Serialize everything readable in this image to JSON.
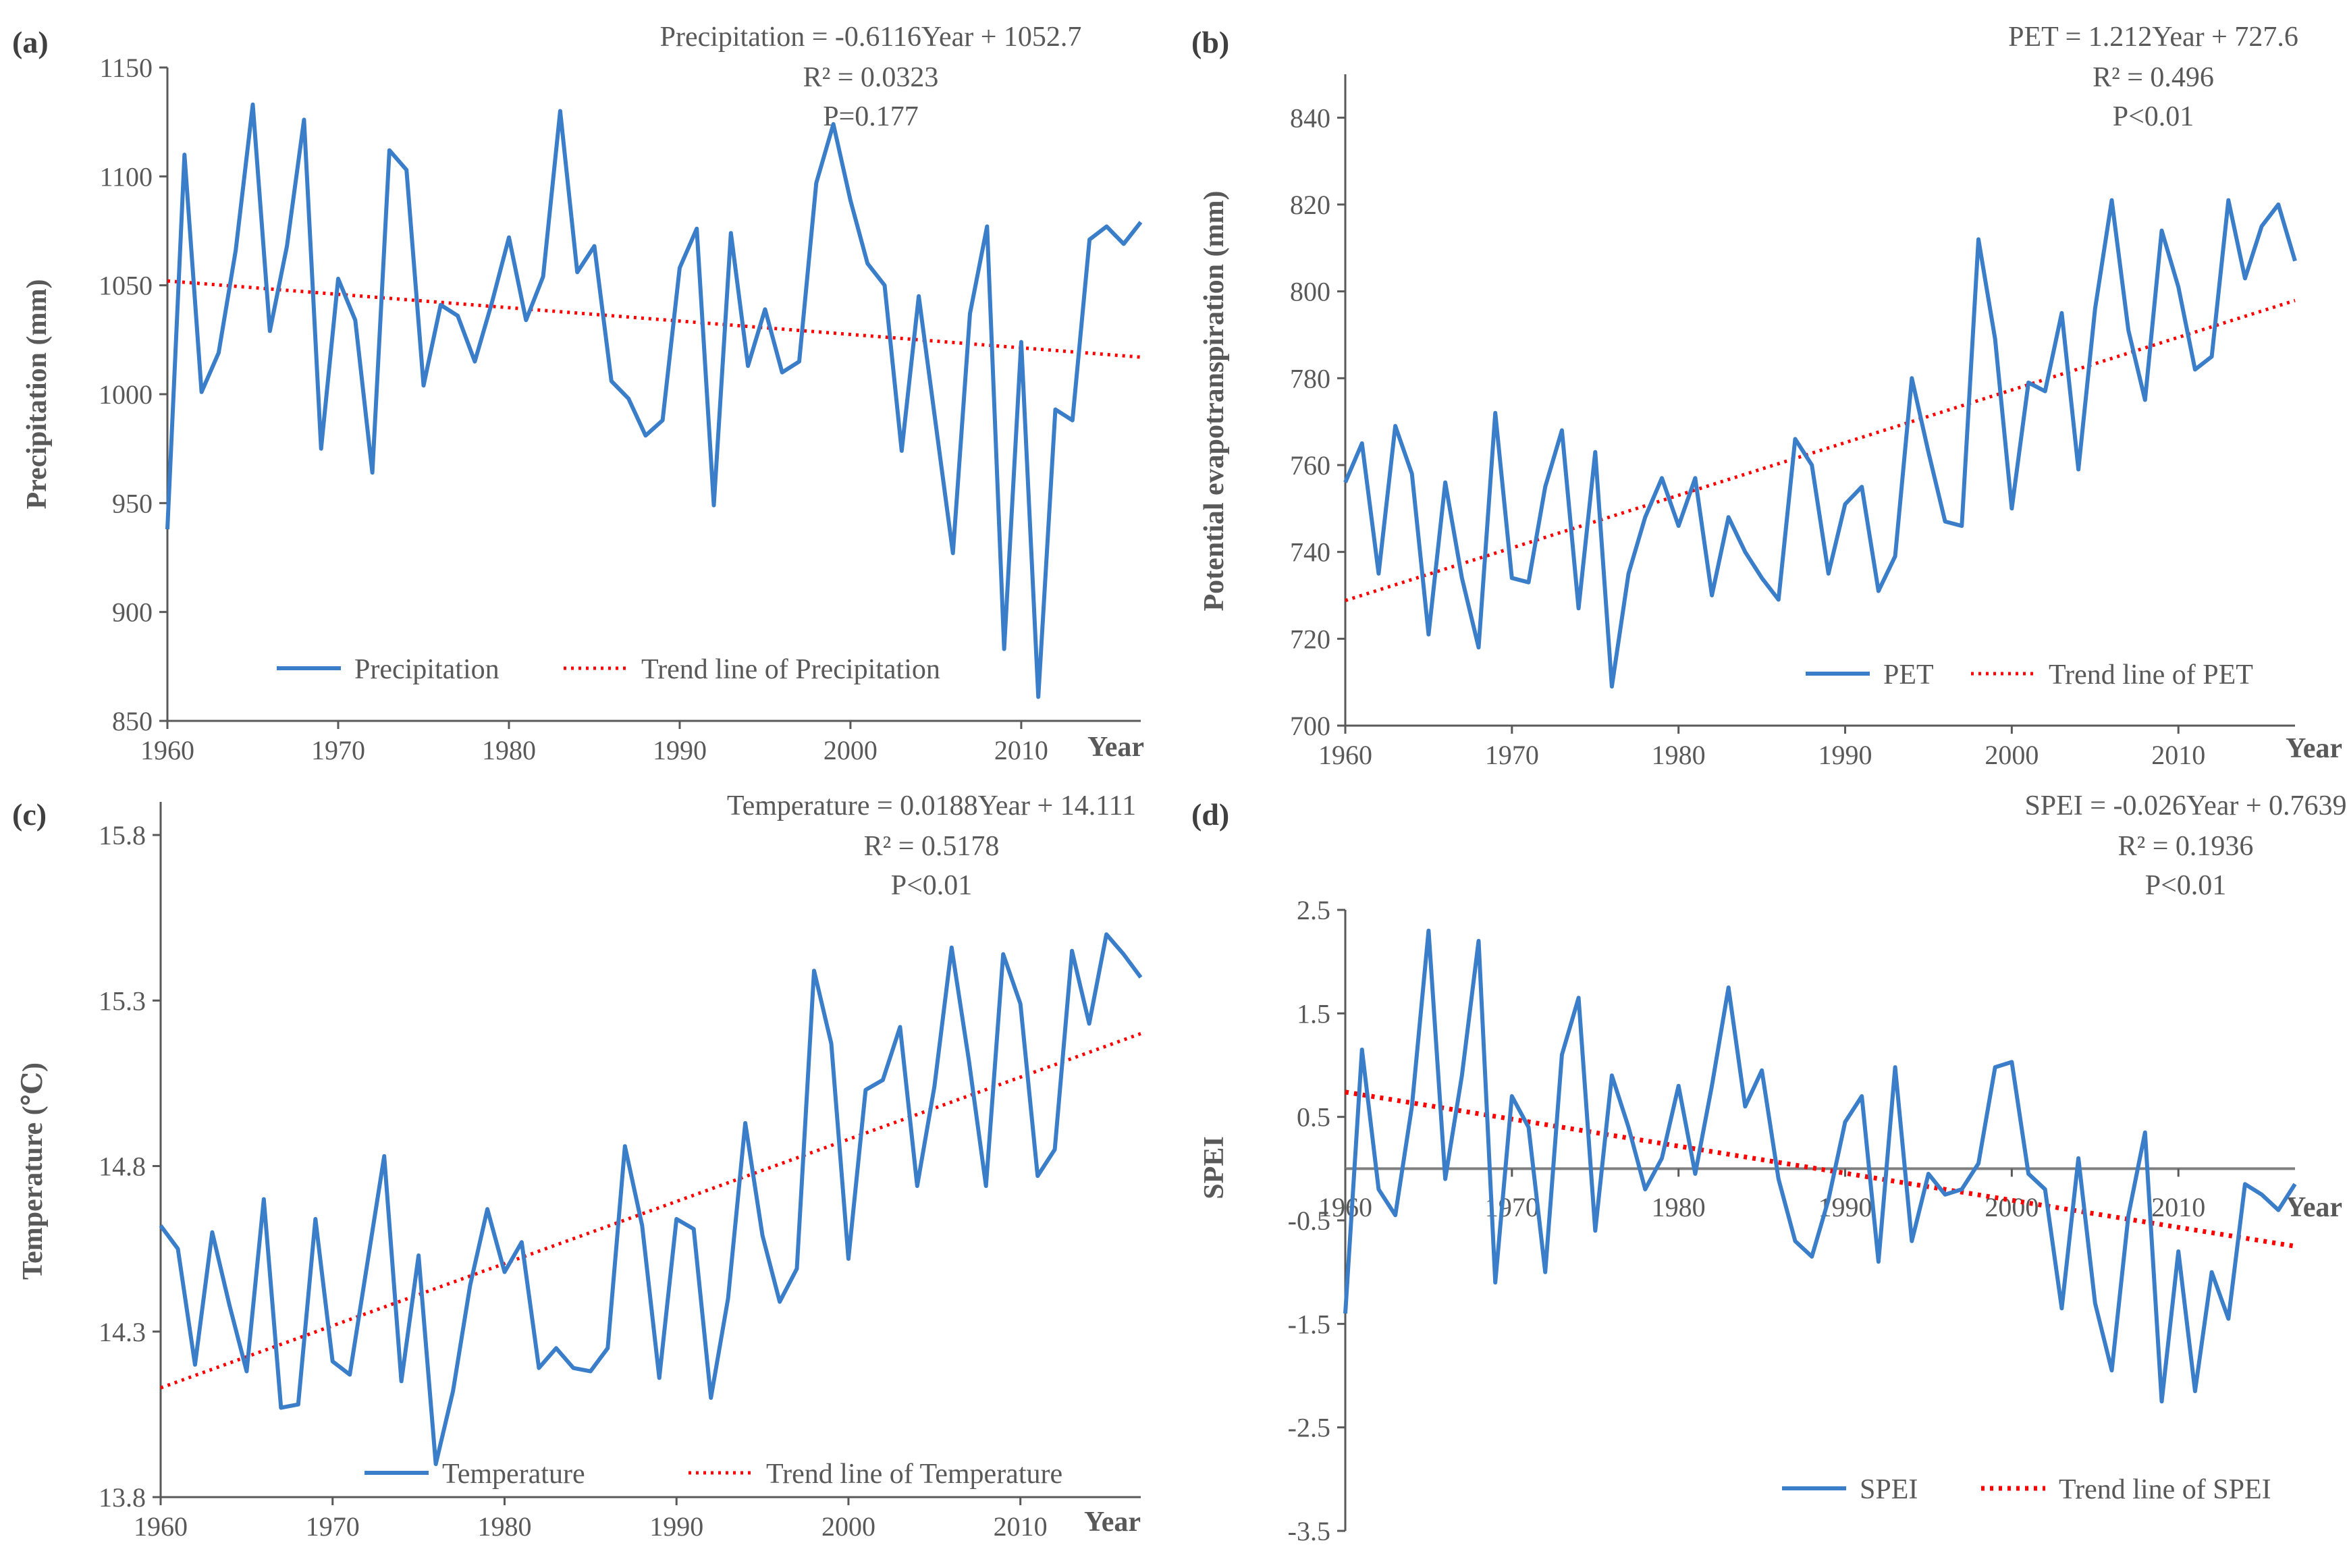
{
  "figure": {
    "colors": {
      "series": "#3a7dc9",
      "trend": "#ff0000",
      "axis": "#595959",
      "zero_line": "#7f7f7f"
    }
  },
  "chart_data": [
    {
      "id": "a",
      "panel_label": "(a)",
      "type": "line",
      "ylabel": "Precipitation (mm)",
      "xlabel": "Year",
      "ylim": [
        850,
        1150
      ],
      "yticks": [
        850,
        900,
        950,
        1000,
        1050,
        1100,
        1150
      ],
      "xlim": [
        1960,
        2017
      ],
      "xticks": [
        1960,
        1970,
        1980,
        1990,
        2000,
        2010
      ],
      "equation": [
        "Precipitation = -0.6116Year + 1052.7",
        "R² = 0.0323",
        "P=0.177"
      ],
      "legend": [
        "Precipitation",
        "Trend line of Precipitation"
      ],
      "legend_position": "bottom",
      "trend": {
        "start": 1052,
        "end": 1017
      },
      "series": [
        {
          "name": "Precipitation",
          "x_start": 1960,
          "values": [
            938,
            1110,
            1001,
            1019,
            1066,
            1133,
            1029,
            1068,
            1126,
            975,
            1053,
            1034,
            964,
            1112,
            1103,
            1004,
            1041,
            1036,
            1015,
            1042,
            1072,
            1034,
            1054,
            1130,
            1056,
            1068,
            1006,
            998,
            981,
            988,
            1058,
            1076,
            949,
            1074,
            1013,
            1039,
            1010,
            1015,
            1097,
            1124,
            1089,
            1060,
            1050,
            974,
            1045,
            986,
            927,
            1037,
            1077,
            883,
            1024,
            861,
            993,
            988,
            1071,
            1077,
            1069,
            1079
          ]
        }
      ]
    },
    {
      "id": "b",
      "panel_label": "(b)",
      "type": "line",
      "ylabel": "Potential evapotranspiration (mm)",
      "xlabel": "Year",
      "ylim": [
        700,
        850
      ],
      "yticks": [
        700,
        720,
        740,
        760,
        780,
        800,
        820,
        840
      ],
      "xlim": [
        1960,
        2017
      ],
      "xticks": [
        1960,
        1970,
        1980,
        1990,
        2000,
        2010
      ],
      "equation": [
        "PET = 1.212Year + 727.6",
        "R² = 0.496",
        "P<0.01"
      ],
      "legend": [
        "PET",
        "Trend line of PET"
      ],
      "legend_position": "bottom-right",
      "trend": {
        "start": 728.8,
        "end": 797.9
      },
      "series": [
        {
          "name": "PET",
          "x_start": 1960,
          "values": [
            756,
            765,
            735,
            769,
            758,
            721,
            756,
            734,
            718,
            772,
            734,
            733,
            755,
            768,
            727,
            763,
            709,
            735,
            748,
            757,
            746,
            757,
            730,
            748,
            740,
            734,
            729,
            766,
            760,
            735,
            751,
            755,
            731,
            739,
            780,
            763,
            747,
            746,
            812,
            789,
            750,
            779,
            777,
            795,
            759,
            796,
            821,
            791,
            775,
            814,
            801,
            782,
            785,
            821,
            803,
            815,
            820,
            807
          ]
        }
      ]
    },
    {
      "id": "c",
      "panel_label": "(c)",
      "type": "line",
      "ylabel": "Temperature (℃)",
      "xlabel": "Year",
      "ylim": [
        13.8,
        15.9
      ],
      "yticks": [
        13.8,
        14.3,
        14.8,
        15.3,
        15.8
      ],
      "xlim": [
        1960,
        2017
      ],
      "xticks": [
        1960,
        1970,
        1980,
        1990,
        2000,
        2010
      ],
      "equation": [
        "Temperature = 0.0188Year + 14.111",
        "R² = 0.5178",
        "P<0.01"
      ],
      "legend": [
        "Temperature",
        "Trend line of Temperature"
      ],
      "legend_position": "bottom",
      "trend": {
        "start": 14.13,
        "end": 15.2
      },
      "series": [
        {
          "name": "Temperature",
          "x_start": 1960,
          "values": [
            14.62,
            14.55,
            14.2,
            14.6,
            14.38,
            14.18,
            14.7,
            14.07,
            14.08,
            14.64,
            14.21,
            14.17,
            14.5,
            14.83,
            14.15,
            14.53,
            13.9,
            14.12,
            14.44,
            14.67,
            14.48,
            14.57,
            14.19,
            14.25,
            14.19,
            14.18,
            14.25,
            14.86,
            14.62,
            14.16,
            14.64,
            14.61,
            14.1,
            14.4,
            14.93,
            14.59,
            14.39,
            14.49,
            15.39,
            15.17,
            14.52,
            15.03,
            15.06,
            15.22,
            14.74,
            15.04,
            15.46,
            15.12,
            14.74,
            15.44,
            15.29,
            14.77,
            14.85,
            15.45,
            15.23,
            15.5,
            15.44,
            15.37
          ]
        }
      ]
    },
    {
      "id": "d",
      "panel_label": "(d)",
      "type": "line",
      "ylabel": "SPEI",
      "xlabel": "Year",
      "ylim": [
        -3.5,
        2.5
      ],
      "yticks": [
        -3.5,
        -2.5,
        -1.5,
        -0.5,
        0.5,
        1.5,
        2.5
      ],
      "xlim": [
        1960,
        2017
      ],
      "xticks": [
        1960,
        1970,
        1980,
        1990,
        2000,
        2010
      ],
      "equation": [
        "SPEI = -0.026Year + 0.7639",
        "R² = 0.1936",
        "P<0.01"
      ],
      "legend": [
        "SPEI",
        "Trend line of SPEI"
      ],
      "legend_position": "bottom-right",
      "trend": {
        "start": 0.74,
        "end": -0.75
      },
      "series": [
        {
          "name": "SPEI",
          "x_start": 1960,
          "values": [
            -1.4,
            1.15,
            -0.2,
            -0.45,
            0.6,
            2.3,
            -0.1,
            0.9,
            2.2,
            -1.1,
            0.7,
            0.4,
            -1.0,
            1.1,
            1.65,
            -0.6,
            0.9,
            0.4,
            -0.2,
            0.1,
            0.8,
            -0.05,
            0.8,
            1.75,
            0.6,
            0.95,
            -0.1,
            -0.7,
            -0.85,
            -0.3,
            0.45,
            0.7,
            -0.9,
            0.98,
            -0.7,
            -0.05,
            -0.25,
            -0.2,
            0.05,
            0.98,
            1.03,
            -0.05,
            -0.2,
            -1.35,
            0.1,
            -1.3,
            -1.95,
            -0.45,
            0.35,
            -2.25,
            -0.8,
            -2.15,
            -1.0,
            -1.45,
            -0.15,
            -0.25,
            -0.4,
            -0.15
          ]
        }
      ]
    }
  ]
}
